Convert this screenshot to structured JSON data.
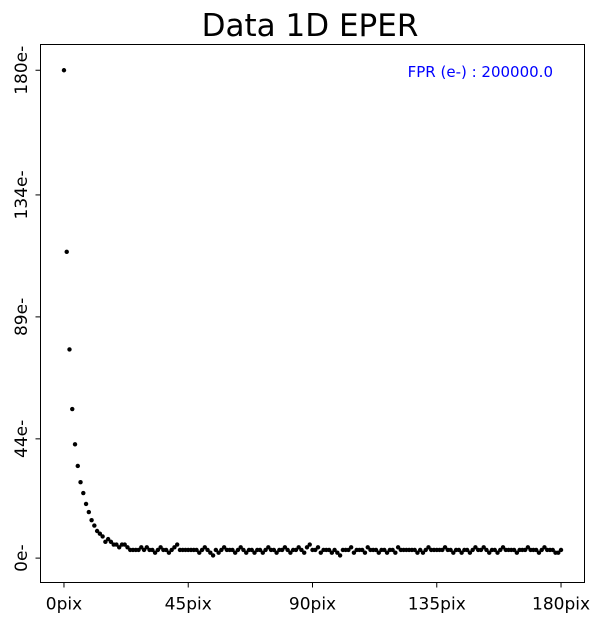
{
  "chart_data": {
    "type": "scatter",
    "title": "Data 1D EPER",
    "xlabel": "",
    "ylabel": "",
    "xlim": [
      -8.5,
      188.5
    ],
    "ylim": [
      -9,
      189.5
    ],
    "x_ticks": [
      0,
      45,
      90,
      135,
      180
    ],
    "x_tick_labels": [
      "0pix",
      "45pix",
      "90pix",
      "135pix",
      "180pix"
    ],
    "y_ticks": [
      0,
      44,
      89,
      134,
      180
    ],
    "y_tick_labels": [
      "0e-",
      "44e-",
      "89e-",
      "134e-",
      "180e-"
    ],
    "grid": false,
    "annotation": {
      "text": "FPR (e-) : 200000.0",
      "color": "#0000ff",
      "position": "top-right"
    },
    "marker_color": "#000000",
    "series": [
      {
        "x": [
          0,
          1,
          2,
          3,
          4,
          5,
          6,
          7,
          8,
          9,
          10,
          11,
          12,
          13,
          14,
          15,
          16,
          17,
          18,
          19,
          20,
          21,
          22,
          23,
          24,
          25,
          26,
          27,
          28,
          29,
          30,
          31,
          32,
          33,
          34,
          35,
          36,
          37,
          38,
          39,
          40,
          41,
          42,
          43,
          44,
          45,
          46,
          47,
          48,
          49,
          50,
          51,
          52,
          53,
          54,
          55,
          56,
          57,
          58,
          59,
          60,
          61,
          62,
          63,
          64,
          65,
          66,
          67,
          68,
          69,
          70,
          71,
          72,
          73,
          74,
          75,
          76,
          77,
          78,
          79,
          80,
          81,
          82,
          83,
          84,
          85,
          86,
          87,
          88,
          89,
          90,
          91,
          92,
          93,
          94,
          95,
          96,
          97,
          98,
          99,
          100,
          101,
          102,
          103,
          104,
          105,
          106,
          107,
          108,
          109,
          110,
          111,
          112,
          113,
          114,
          115,
          116,
          117,
          118,
          119,
          120,
          121,
          122,
          123,
          124,
          125,
          126,
          127,
          128,
          129,
          130,
          131,
          132,
          133,
          134,
          135,
          136,
          137,
          138,
          139,
          140,
          141,
          142,
          143,
          144,
          145,
          146,
          147,
          148,
          149,
          150,
          151,
          152,
          153,
          154,
          155,
          156,
          157,
          158,
          159,
          160,
          161,
          162,
          163,
          164,
          165,
          166,
          167,
          168,
          169,
          170,
          171,
          172,
          173,
          174,
          175,
          176,
          177,
          178,
          179,
          180
        ],
        "y": [
          180,
          113,
          77,
          55,
          42,
          34,
          28,
          24,
          20,
          17,
          14,
          12,
          10,
          9,
          8,
          6,
          7,
          6,
          5,
          5,
          4,
          5,
          5,
          4,
          3,
          3,
          3,
          3,
          4,
          3,
          4,
          3,
          3,
          2,
          3,
          4,
          3,
          3,
          2,
          3,
          4,
          5,
          3,
          3,
          3,
          3,
          3,
          3,
          3,
          2,
          3,
          4,
          3,
          2,
          1,
          3,
          2,
          3,
          4,
          3,
          3,
          3,
          2,
          3,
          4,
          3,
          2,
          3,
          3,
          2,
          3,
          3,
          2,
          3,
          4,
          3,
          3,
          2,
          3,
          3,
          4,
          3,
          2,
          3,
          3,
          4,
          3,
          2,
          4,
          5,
          3,
          3,
          4,
          2,
          3,
          3,
          3,
          2,
          3,
          2,
          1,
          3,
          3,
          3,
          4,
          2,
          3,
          3,
          3,
          2,
          4,
          3,
          3,
          3,
          2,
          3,
          3,
          2,
          3,
          3,
          2,
          4,
          3,
          3,
          3,
          3,
          3,
          3,
          2,
          3,
          2,
          3,
          4,
          3,
          3,
          3,
          3,
          3,
          4,
          3,
          3,
          2,
          3,
          3,
          2,
          3,
          3,
          2,
          3,
          4,
          3,
          3,
          4,
          3,
          2,
          3,
          3,
          2,
          3,
          4,
          3,
          3,
          3,
          3,
          2,
          3,
          3,
          3,
          4,
          3,
          3,
          3,
          2,
          3,
          4,
          3,
          3,
          3,
          2,
          2,
          3
        ]
      }
    ]
  }
}
